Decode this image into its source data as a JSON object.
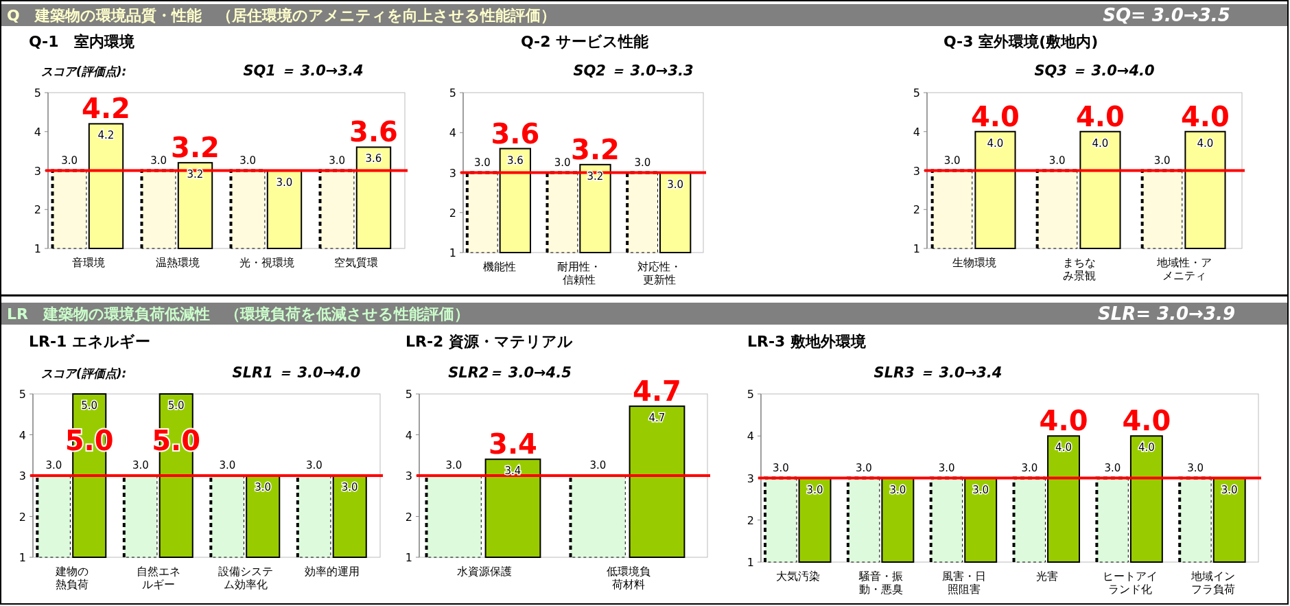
{
  "chart_data": [
    {
      "type": "bar",
      "title": "Q-1　室内環境",
      "subtitle": "SQ1 ＝ 3.0→3.4",
      "annotations": [
        "Q　建築物の環境品質・性能　（居住環境のアメニティを向上させる性能評価）",
        "SQ= 3.0→3.5",
        "スコア(評価点):",
        {
          "text": "4.2",
          "x": "音環境",
          "y": 4.2
        },
        {
          "text": "3.2",
          "x": "温熱環境",
          "y": 3.2
        },
        {
          "text": "3.6",
          "x": "空気質環",
          "y": 3.6
        }
      ],
      "categories": [
        "音環境",
        "温熱環境",
        "光・視環境",
        "空気質環"
      ],
      "ylim": [
        1,
        5
      ],
      "yticks": [
        1,
        2,
        3,
        4,
        5
      ],
      "ref_lines": [
        {
          "axis": "y",
          "value": 3,
          "color": "#ff0000"
        }
      ],
      "series": [
        {
          "color": "#fffbdc",
          "line_style": "dashed",
          "values": [
            3.0,
            3.0,
            3.0,
            3.0
          ],
          "value_labels": [
            "3.0",
            "3.0",
            "3.0",
            "3.0"
          ]
        },
        {
          "color": "#ffff99",
          "values": [
            4.2,
            3.2,
            3.0,
            3.6
          ],
          "value_labels": [
            "4.2",
            "3.2",
            "3.0",
            "3.6"
          ]
        }
      ]
    },
    {
      "type": "bar",
      "title": "Q-2 サービス性能",
      "subtitle": "SQ2 ＝ 3.0→3.3",
      "annotations": [
        {
          "text": "3.6",
          "x": "機能性",
          "y": 3.6
        },
        {
          "text": "3.2",
          "x": "耐用性・信頼性",
          "y": 3.2
        }
      ],
      "categories": [
        "機能性",
        "耐用性・信頼性",
        "対応性・更新性"
      ],
      "ylim": [
        1,
        5
      ],
      "yticks": [
        1,
        2,
        3,
        4,
        5
      ],
      "ref_lines": [
        {
          "axis": "y",
          "value": 3,
          "color": "#ff0000"
        }
      ],
      "series": [
        {
          "color": "#fffbdc",
          "line_style": "dashed",
          "values": [
            3.0,
            3.0,
            3.0
          ],
          "value_labels": [
            "3.0",
            "3.0",
            "3.0"
          ]
        },
        {
          "color": "#ffff99",
          "values": [
            3.6,
            3.2,
            3.0
          ],
          "value_labels": [
            "3.6",
            "3.2",
            "3.0"
          ]
        }
      ]
    },
    {
      "type": "bar",
      "title": "Q-3 室外環境(敷地内)",
      "subtitle": "SQ3 ＝ 3.0→4.0",
      "annotations": [
        {
          "text": "4.0",
          "x": "生物環境",
          "y": 4.0
        },
        {
          "text": "4.0",
          "x": "まちなみ景観",
          "y": 4.0
        },
        {
          "text": "4.0",
          "x": "地域性・アメニティ",
          "y": 4.0
        }
      ],
      "categories": [
        "生物環境",
        "まちなみ景観",
        "地域性・アメニティ"
      ],
      "ylim": [
        1,
        5
      ],
      "yticks": [
        1,
        2,
        3,
        4,
        5
      ],
      "ref_lines": [
        {
          "axis": "y",
          "value": 3,
          "color": "#ff0000"
        }
      ],
      "series": [
        {
          "color": "#fffbdc",
          "line_style": "dashed",
          "values": [
            3.0,
            3.0,
            3.0
          ],
          "value_labels": [
            "3.0",
            "3.0",
            "3.0"
          ]
        },
        {
          "color": "#ffff99",
          "values": [
            4.0,
            4.0,
            4.0
          ],
          "value_labels": [
            "4.0",
            "4.0",
            "4.0"
          ]
        }
      ]
    },
    {
      "type": "bar",
      "title": "LR-1 エネルギー",
      "subtitle": "SLR1 ＝ 3.0→4.0",
      "annotations": [
        "LR　建築物の環境負荷低減性　（環境負荷を低減させる性能評価）",
        "SLR= 3.0→3.9",
        "スコア(評価点):",
        {
          "text": "5.0",
          "x": "建物の熱負荷",
          "y": 5.0
        },
        {
          "text": "5.0",
          "x": "自然エネルギー",
          "y": 5.0
        }
      ],
      "categories": [
        "建物の熱負荷",
        "自然エネルギー",
        "設備システム効率化",
        "効率的運用"
      ],
      "ylim": [
        1,
        5
      ],
      "yticks": [
        1,
        2,
        3,
        4,
        5
      ],
      "ref_lines": [
        {
          "axis": "y",
          "value": 3,
          "color": "#ff0000"
        }
      ],
      "series": [
        {
          "color": "#ddfadd",
          "line_style": "dashed",
          "values": [
            3.0,
            3.0,
            3.0,
            3.0
          ],
          "value_labels": [
            "3.0",
            "3.0",
            "3.0",
            "3.0"
          ]
        },
        {
          "color": "#99cc00",
          "values": [
            5.0,
            5.0,
            3.0,
            3.0
          ],
          "value_labels": [
            "5.0",
            "5.0",
            "3.0",
            "3.0"
          ]
        }
      ]
    },
    {
      "type": "bar",
      "title": "LR-2 資源・マテリアル",
      "subtitle": "SLR2＝ 3.0→4.5",
      "annotations": [
        "3.4",
        "4.7"
      ],
      "categories": [
        "水資源保護",
        "低環境負荷材料"
      ],
      "ylim": [
        1,
        5
      ],
      "yticks": [
        1,
        2,
        3,
        4,
        5
      ],
      "ref_lines": [
        {
          "axis": "y",
          "value": 3,
          "color": "#ff0000"
        }
      ],
      "series": [
        {
          "color": "#ddfadd",
          "line_style": "dashed",
          "values": [
            3.0,
            3.0
          ],
          "value_labels": [
            "3.0",
            "3.0"
          ]
        },
        {
          "color": "#99cc00",
          "values": [
            3.4,
            4.7
          ],
          "value_labels": [
            "3.4",
            "4.7"
          ]
        }
      ]
    },
    {
      "type": "bar",
      "title": "LR-3 敷地外環境",
      "subtitle": "SLR3 ＝ 3.0→3.4",
      "annotations": [
        {
          "text": "4.0",
          "x": "光害",
          "y": 4.0
        },
        {
          "text": "4.0",
          "x": "ヒートアイランド化",
          "y": 4.0
        }
      ],
      "categories": [
        "大気汚染",
        "騒音・振動・悪臭",
        "風害・日照阻害",
        "光害",
        "ヒートアイランド化",
        "地域インフラ負荷"
      ],
      "ylim": [
        1,
        5
      ],
      "yticks": [
        1,
        2,
        3,
        4,
        5
      ],
      "ref_lines": [
        {
          "axis": "y",
          "value": 3,
          "color": "#ff0000"
        }
      ],
      "series": [
        {
          "color": "#ddfadd",
          "line_style": "dashed",
          "values": [
            3.0,
            3.0,
            3.0,
            3.0,
            3.0,
            3.0
          ],
          "value_labels": [
            "3.0",
            "3.0",
            "3.0",
            "3.0",
            "3.0",
            "3.0"
          ]
        },
        {
          "color": "#99cc00",
          "values": [
            3.0,
            3.0,
            3.0,
            4.0,
            4.0,
            3.0
          ],
          "value_labels": [
            "3.0",
            "3.0",
            "3.0",
            "4.0",
            "4.0",
            "3.0"
          ]
        }
      ]
    }
  ]
}
